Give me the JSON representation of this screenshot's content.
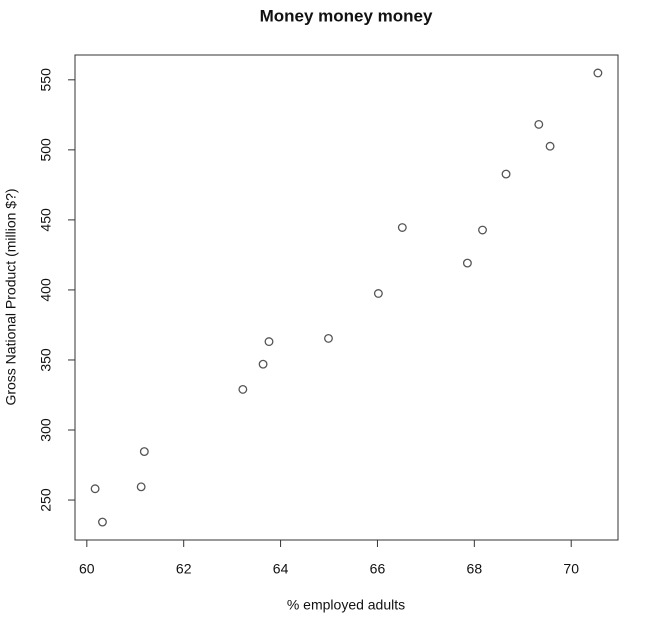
{
  "chart_data": {
    "type": "scatter",
    "title": "Money money money",
    "xlabel": "% employed adults",
    "ylabel": "Gross National Product (million $?)",
    "x": [
      60.323,
      61.122,
      60.171,
      61.187,
      63.221,
      63.639,
      64.989,
      63.761,
      66.019,
      67.857,
      68.169,
      66.513,
      68.655,
      69.564,
      69.331,
      70.551
    ],
    "y": [
      234.289,
      259.426,
      258.054,
      284.599,
      328.975,
      346.999,
      365.385,
      363.112,
      397.469,
      419.18,
      442.769,
      444.546,
      482.704,
      502.601,
      518.173,
      554.894
    ],
    "color": "#555555",
    "xlim": [
      59.756,
      70.966
    ],
    "ylim": [
      221.47,
      567.72
    ],
    "xticks": [
      60,
      62,
      64,
      66,
      68,
      70
    ],
    "yticks": [
      250,
      300,
      350,
      400,
      450,
      500,
      550
    ]
  }
}
